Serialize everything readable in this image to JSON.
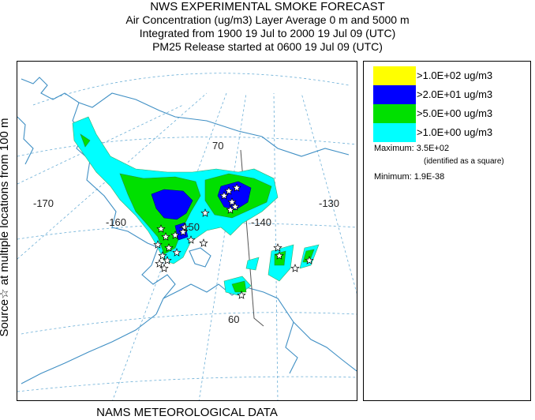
{
  "titles": {
    "line1": "NWS EXPERIMENTAL SMOKE FORECAST",
    "line2": "Air Concentration (ug/m3) Layer Average    0 m and  5000 m",
    "line3": "Integrated from 1900 19 Jul to 2000 19 Jul 09 (UTC)",
    "line4": "PM25 Release started at 0600 19 Jul 09 (UTC)"
  },
  "side_label": "Source☆  at multiple locations   from  100 m",
  "footer": "NAMS METEOROLOGICAL DATA",
  "map": {
    "graticule_labels": {
      "lon_170": "-170",
      "lon_160": "-160",
      "lon_150": "-150",
      "lon_140": "-140",
      "lon_130": "-130",
      "lat_70": "70",
      "lat_60": "60"
    },
    "colors": {
      "coastline": "#3f8fc4",
      "graticule": "#6aaed6",
      "border": "#555555"
    },
    "marker_icon": "star-icon"
  },
  "legend": {
    "items": [
      {
        "label": ">1.0E+02 ug/m3",
        "color": "#ffff00"
      },
      {
        "label": ">2.0E+01 ug/m3",
        "color": "#0000ff"
      },
      {
        "label": ">5.0E+00 ug/m3",
        "color": "#00e000"
      },
      {
        "label": ">1.0E+00 ug/m3",
        "color": "#00ffff"
      }
    ],
    "maximum": "Maximum: 3.5E+02",
    "maximum_note": "(identified as a square)",
    "minimum": "Minimum: 1.9E-38"
  }
}
